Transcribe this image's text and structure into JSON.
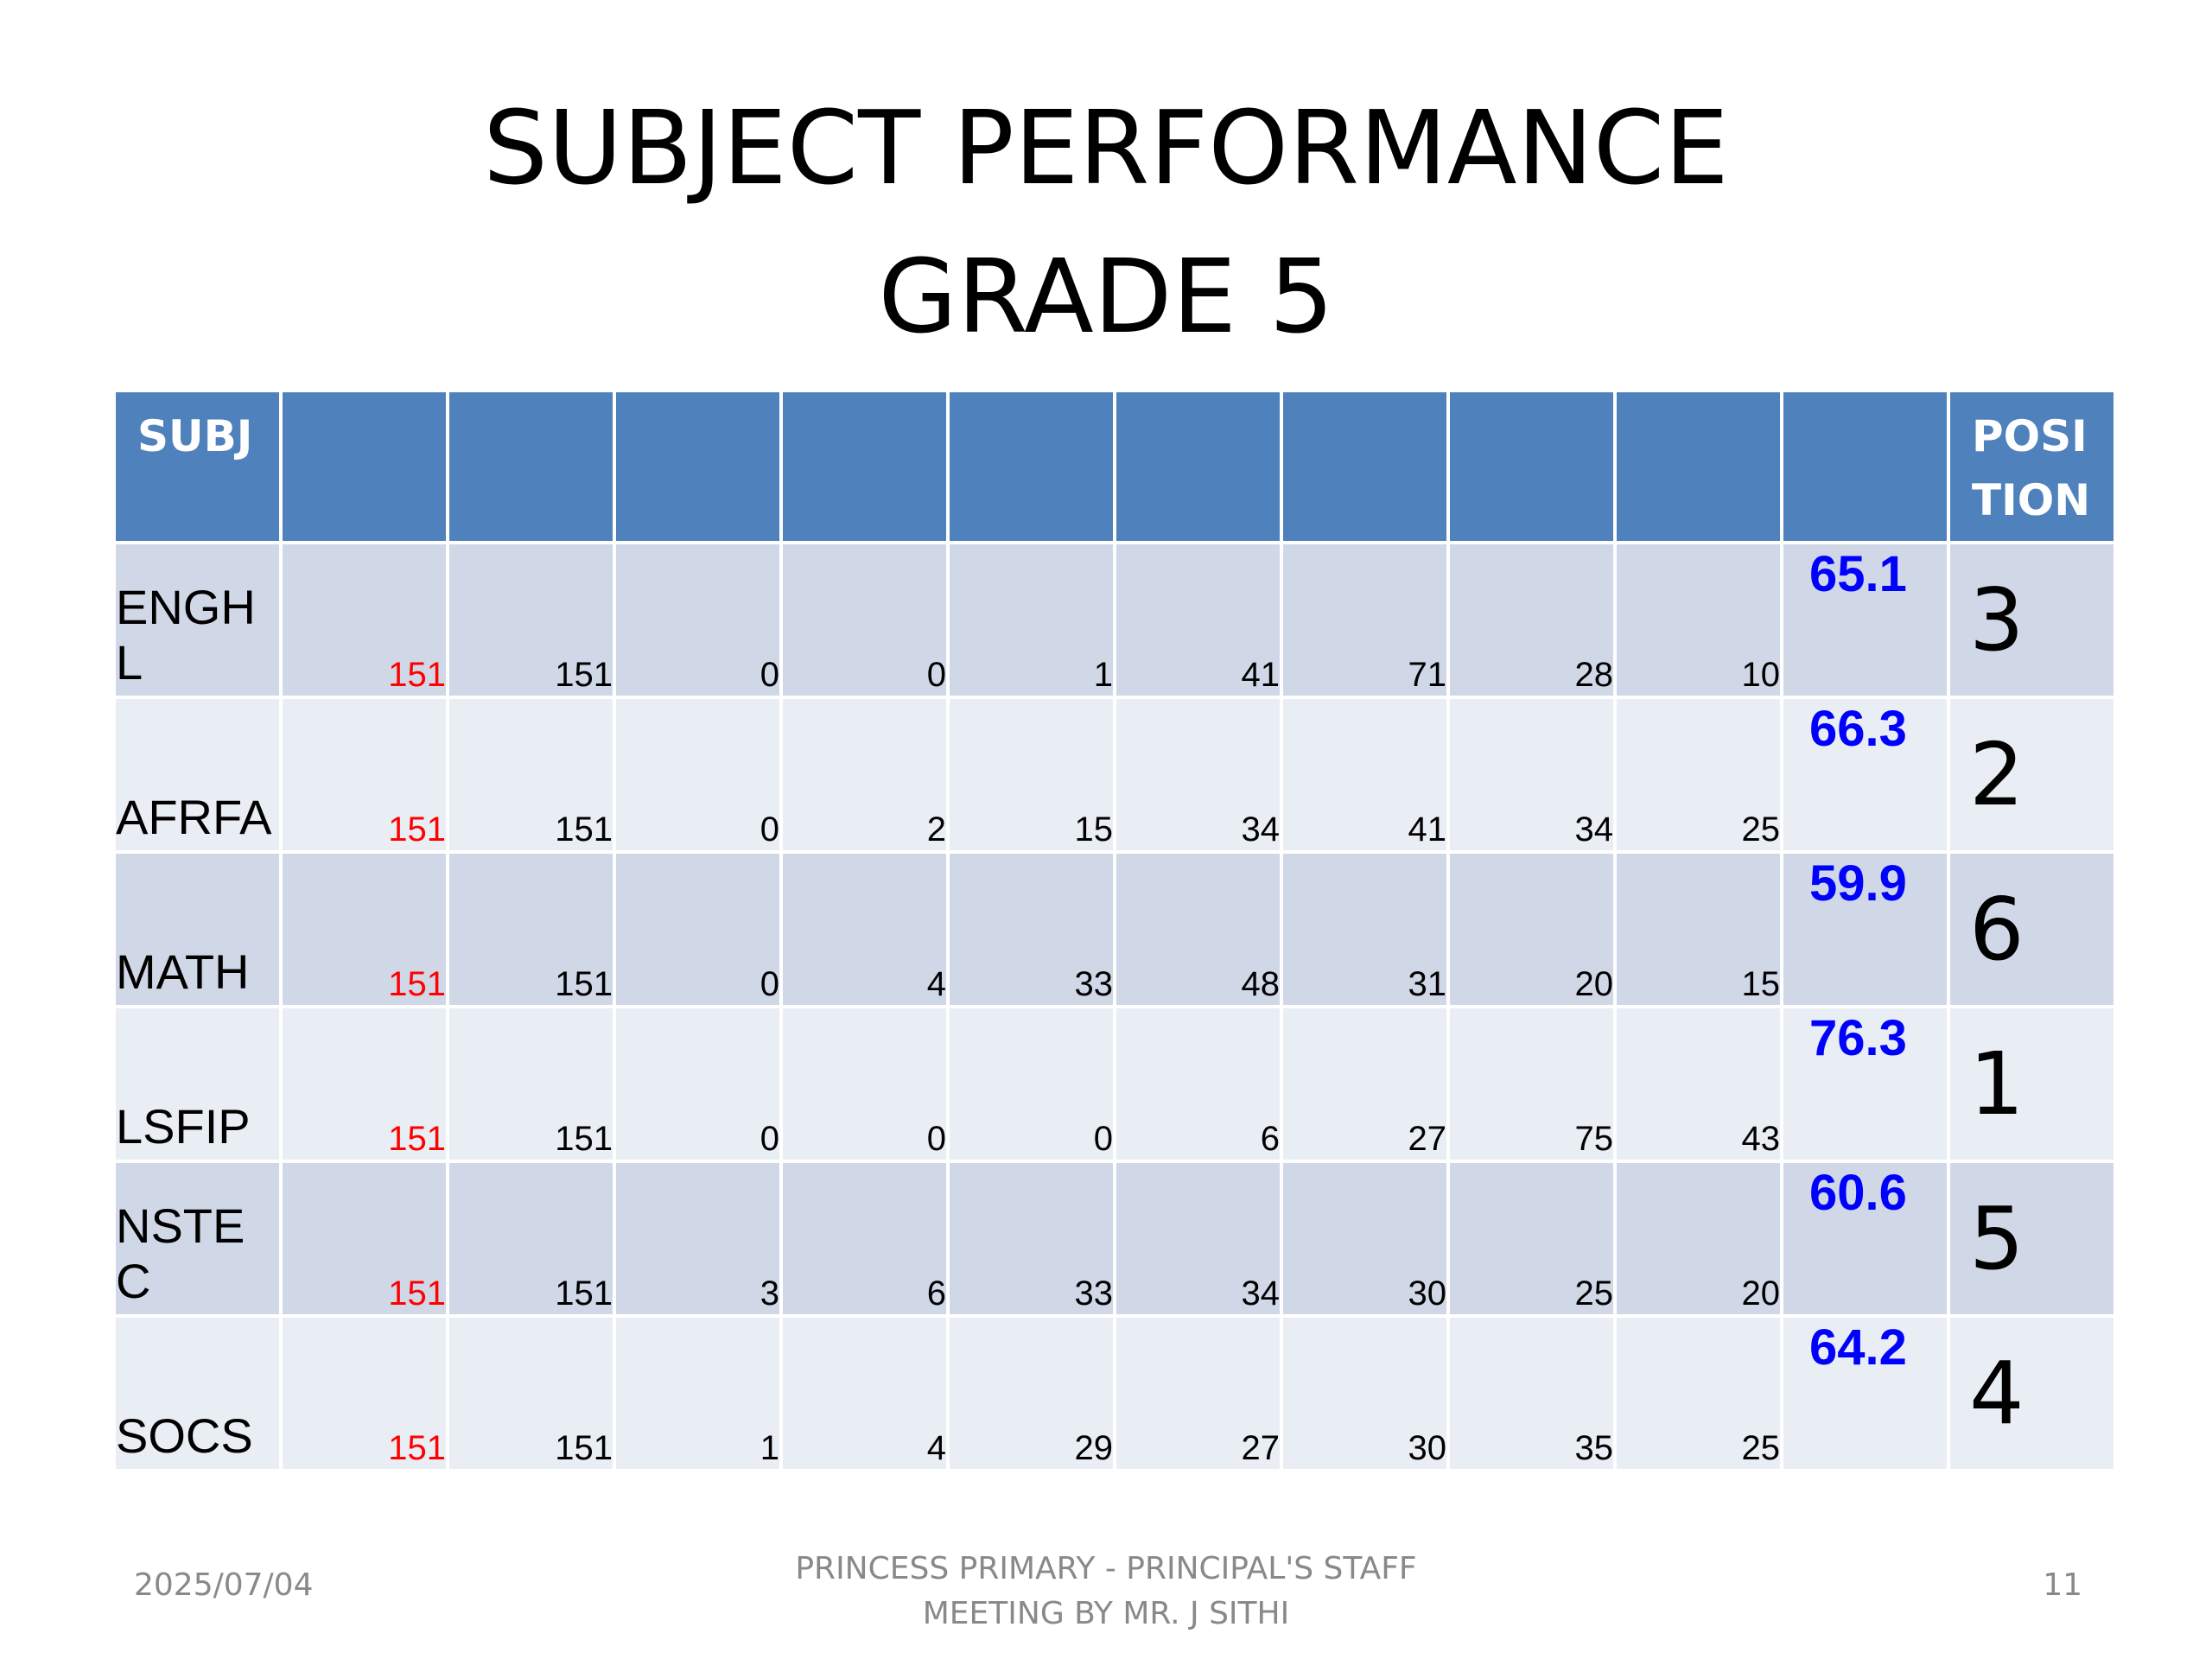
{
  "slide": {
    "title": "SUBJECT PERFORMANCE\nGRADE  5"
  },
  "table": {
    "headers": [
      "SUBJ",
      "",
      "",
      "",
      "",
      "",
      "",
      "",
      "",
      "",
      "",
      "POSI TION"
    ],
    "rows": [
      {
        "subject": "ENGHL",
        "total": "151",
        "values": [
          "151",
          "0",
          "0",
          "1",
          "41",
          "71",
          "28",
          "10"
        ],
        "average": "65.1",
        "position": "3"
      },
      {
        "subject": "AFRFA",
        "total": "151",
        "values": [
          "151",
          "0",
          "2",
          "15",
          "34",
          "41",
          "34",
          "25"
        ],
        "average": "66.3",
        "position": "2"
      },
      {
        "subject": "MATH",
        "total": "151",
        "values": [
          "151",
          "0",
          "4",
          "33",
          "48",
          "31",
          "20",
          "15"
        ],
        "average": "59.9",
        "position": "6"
      },
      {
        "subject": "LSFIP",
        "total": "151",
        "values": [
          "151",
          "0",
          "0",
          "0",
          "6",
          "27",
          "75",
          "43"
        ],
        "average": "76.3",
        "position": "1"
      },
      {
        "subject": "NSTEC",
        "total": "151",
        "values": [
          "151",
          "3",
          "6",
          "33",
          "34",
          "30",
          "25",
          "20"
        ],
        "average": "60.6",
        "position": "5"
      },
      {
        "subject": "SOCS",
        "total": "151",
        "values": [
          "151",
          "1",
          "4",
          "29",
          "27",
          "30",
          "35",
          "25"
        ],
        "average": "64.2",
        "position": "4"
      }
    ]
  },
  "footer": {
    "date": "2025/07/04",
    "center": "PRINCESS PRIMARY - PRINCIPAL'S STAFF\nMEETING BY MR. J SITHI",
    "page_number": "11"
  },
  "colors": {
    "header_bg": "#4f81bd",
    "row_odd_bg": "#d0d8e8",
    "row_even_bg": "#e9edf4",
    "total_text": "#ff0000",
    "average_text": "#0000ff",
    "footer_text": "#898989"
  }
}
